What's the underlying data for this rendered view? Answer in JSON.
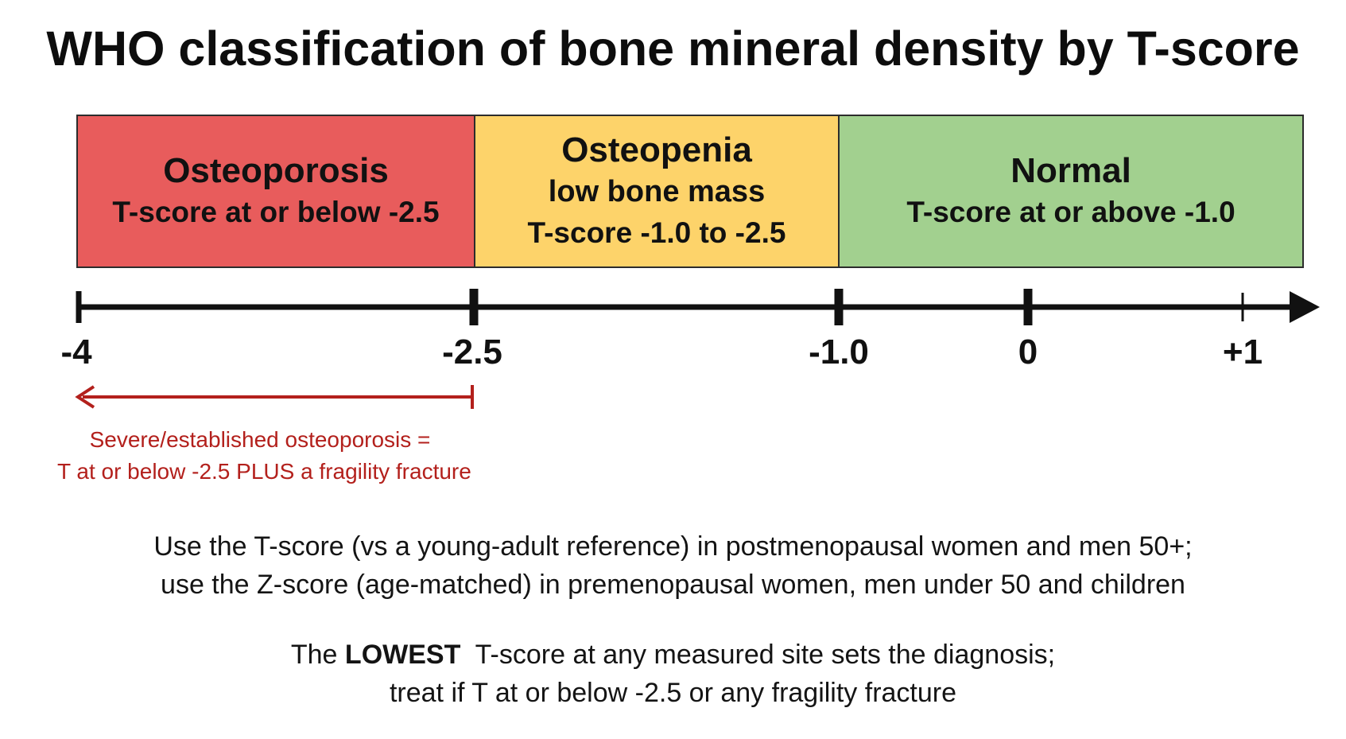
{
  "title": "WHO classification of bone mineral density by T-score",
  "colors": {
    "osteoporosis": "#e85c5c",
    "osteopenia": "#fdd36a",
    "normal": "#a2d08f",
    "axis": "#111111",
    "severe_arrow": "#b3201c"
  },
  "bands": {
    "osteoporosis": {
      "heading": "Osteoporosis",
      "range": "T-score at or below -2.5",
      "from": -4,
      "to": -2.5
    },
    "osteopenia": {
      "heading": "Osteopenia",
      "subheading": "low bone mass",
      "range": "T-score -1.0 to -2.5",
      "from": -2.5,
      "to": -1.0
    },
    "normal": {
      "heading": "Normal",
      "range": "T-score at or above -1.0",
      "from": -1.0,
      "to": 1
    }
  },
  "axis": {
    "ticks": [
      "-4",
      "-2.5",
      "-1.0",
      "0",
      "+1"
    ]
  },
  "severe": {
    "line1": "Severe/established osteoporosis =",
    "line2": "T at or below -2.5 PLUS a fragility fracture",
    "arrow_from": -2.5,
    "arrow_to": -4
  },
  "notes": {
    "scores_line1": "Use the T-score (vs a young-adult reference) in postmenopausal women and men 50+;",
    "scores_line2": "use the Z-score (age-matched) in premenopausal women, men under 50 and children",
    "lowest_prefix": "The ",
    "lowest_strong": "LOWEST",
    "lowest_suffix": "  T-score at any measured site sets the diagnosis;",
    "lowest_line2": "treat if T at or below -2.5 or any fragility fracture"
  }
}
